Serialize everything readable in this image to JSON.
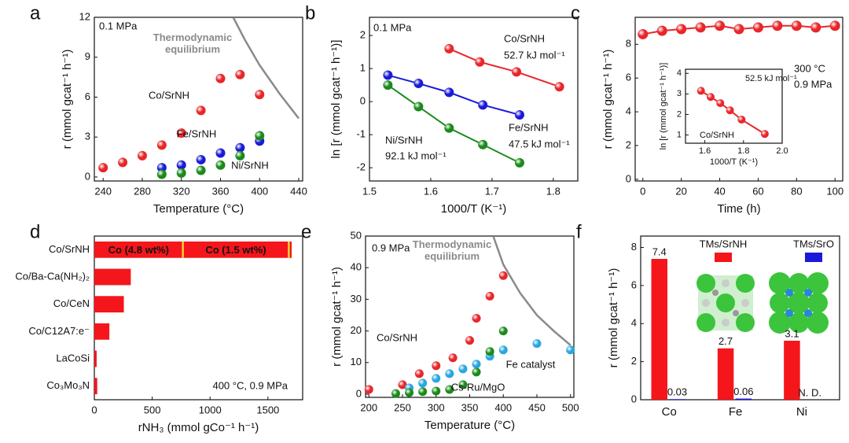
{
  "chart_data": [
    {
      "type": "scatter",
      "label": "a",
      "xlabel": "Temperature (°C)",
      "ylabel": "r (mmol gcat⁻¹ h⁻¹)",
      "xlim": [
        231,
        444
      ],
      "xticks": [
        240,
        280,
        320,
        360,
        400,
        440
      ],
      "ylim": [
        -0.3,
        12
      ],
      "yticks": [
        0,
        3,
        6,
        9,
        12
      ],
      "series": [
        {
          "name": "Co/SrNH",
          "color": "#e8262a",
          "mode": "markers",
          "x": [
            240,
            260,
            280,
            300,
            320,
            340,
            360,
            380,
            400
          ],
          "values": [
            0.7,
            1.1,
            1.6,
            2.4,
            3.3,
            5.0,
            7.4,
            7.7,
            6.2
          ]
        },
        {
          "name": "Fe/SrNH",
          "color": "#1a1ad8",
          "mode": "markers",
          "x": [
            300,
            320,
            340,
            360,
            380,
            400
          ],
          "values": [
            0.7,
            0.9,
            1.3,
            1.8,
            2.2,
            2.7
          ]
        },
        {
          "name": "Ni/SrNH",
          "color": "#1a8a1a",
          "mode": "markers",
          "x": [
            300,
            320,
            340,
            360,
            380,
            400
          ],
          "values": [
            0.2,
            0.3,
            0.5,
            0.9,
            1.6,
            3.1
          ]
        },
        {
          "name": "Thermodynamic equilibrium",
          "color": "#8a8a8a",
          "mode": "lines",
          "x": [
            373,
            385,
            400,
            420,
            440
          ],
          "values": [
            12,
            10.3,
            8.4,
            6.3,
            4.4
          ]
        }
      ],
      "annotations": [
        {
          "text": "0.1 MPa",
          "color": "#111111"
        }
      ]
    },
    {
      "type": "scatter",
      "label": "b",
      "xlabel": "1000/T (K⁻¹)",
      "ylabel": "ln [r (mmol gcat⁻¹ h⁻¹)]",
      "xlim": [
        1.5,
        1.84
      ],
      "xticks": [
        1.5,
        1.6,
        1.7,
        1.8
      ],
      "ylim": [
        -2.4,
        2.55
      ],
      "yticks": [
        -2,
        -1,
        0,
        1,
        2
      ],
      "series": [
        {
          "name": "Co/SrNH",
          "color": "#e8262a",
          "mode": "lines+markers",
          "x": [
            1.63,
            1.68,
            1.74,
            1.81
          ],
          "values": [
            1.6,
            1.2,
            0.9,
            0.45
          ]
        },
        {
          "name": "Fe/SrNH",
          "color": "#1a1ad8",
          "mode": "lines+markers",
          "x": [
            1.53,
            1.58,
            1.63,
            1.685,
            1.745
          ],
          "values": [
            0.8,
            0.55,
            0.28,
            -0.1,
            -0.4
          ]
        },
        {
          "name": "Ni/SrNH",
          "color": "#1a8a1a",
          "mode": "lines+markers",
          "x": [
            1.53,
            1.58,
            1.63,
            1.685,
            1.745
          ],
          "values": [
            0.5,
            -0.15,
            -0.8,
            -1.3,
            -1.85
          ]
        }
      ],
      "annotations": [
        {
          "text": "0.1 MPa",
          "color": "#111111"
        },
        {
          "text": "52.7 kJ mol⁻¹",
          "color": "#e8262a"
        },
        {
          "text": "47.5 kJ mol⁻¹",
          "color": "#1a1ad8"
        },
        {
          "text": "92.1 kJ mol⁻¹",
          "color": "#1a8a1a"
        }
      ]
    },
    {
      "type": "scatter",
      "label": "c",
      "xlabel": "Time (h)",
      "ylabel": "r (mmol gcat⁻¹ h⁻¹)",
      "xlim": [
        -4,
        104
      ],
      "xticks": [
        0,
        20,
        40,
        60,
        80,
        100
      ],
      "ylim": [
        -0.1,
        9.6
      ],
      "yticks": [
        0,
        2,
        4,
        6,
        8
      ],
      "series": [
        {
          "color": "#e8262a",
          "mode": "lines+markers",
          "x": [
            0,
            10,
            20,
            30,
            40,
            50,
            60,
            70,
            80,
            90,
            100
          ],
          "values": [
            8.6,
            8.8,
            8.9,
            9.0,
            9.1,
            8.9,
            9.0,
            9.1,
            9.1,
            9.0,
            9.1
          ]
        }
      ],
      "annotations": [
        {
          "text": "300 °C",
          "color": "#111111"
        },
        {
          "text": "0.9 MPa",
          "color": "#111111"
        }
      ],
      "inset": {
        "type": "scatter",
        "xlabel": "1000/T (K⁻¹)",
        "ylabel": "ln [r (mmol gcat⁻¹ h⁻¹)]",
        "xlim": [
          1.5,
          2.0
        ],
        "xticks": [
          1.6,
          1.8,
          {
            "value": 2,
            "label": "2.0"
          }
        ],
        "ylim": [
          0.6,
          4.2
        ],
        "yticks": [
          1,
          2,
          3,
          4
        ],
        "series": [
          {
            "name": "Co/SrNH",
            "color": "#e8262a",
            "mode": "lines+markers",
            "x": [
              1.58,
              1.63,
              1.68,
              1.73,
              1.79,
              1.91
            ],
            "values": [
              3.15,
              2.85,
              2.55,
              2.2,
              1.75,
              1.05
            ]
          }
        ],
        "annotations": [
          {
            "text": "52.5 kJ mol⁻¹",
            "color": "#e8262a"
          }
        ]
      }
    },
    {
      "type": "hbar",
      "label": "d",
      "xlabel": "rNH₃ (mmol gCo⁻¹ h⁻¹)",
      "categories": [
        "Co/SrNH",
        "Co/Ba-Ca(NH₂)₂",
        "Co/CeN",
        "Co/C12A7:e⁻",
        "LaCoSi",
        "Co₃Mo₃N"
      ],
      "values": [
        1705,
        315,
        255,
        130,
        20,
        25
      ],
      "color": "#f4161b",
      "xlim": [
        0,
        1800
      ],
      "xticks": [
        0,
        500,
        1000,
        1500
      ],
      "markers": [
        {
          "value": 765,
          "label": "Co (4.8 wt%)"
        },
        {
          "value": 1680,
          "label": "Co (1.5 wt%)"
        }
      ],
      "marker_color": "#f5d230",
      "annotations": [
        {
          "text": "400 °C, 0.9 MPa",
          "color": "#111111"
        }
      ]
    },
    {
      "type": "scatter",
      "label": "e",
      "xlabel": "Temperature (°C)",
      "ylabel": "r (mmol gcat⁻¹ h⁻¹)",
      "xlim": [
        195,
        505
      ],
      "xticks": [
        200,
        250,
        300,
        350,
        400,
        450,
        500
      ],
      "ylim": [
        -1,
        50
      ],
      "yticks": [
        0,
        10,
        20,
        30,
        40,
        50
      ],
      "series": [
        {
          "name": "Co/SrNH",
          "color": "#e8262a",
          "mode": "markers",
          "x": [
            200,
            250,
            275,
            300,
            325,
            350,
            360,
            380,
            400
          ],
          "values": [
            1.5,
            3,
            6.5,
            9,
            11.5,
            17,
            24,
            31,
            37.5
          ]
        },
        {
          "name": "Fe catalyst",
          "color": "#2aa6e0",
          "mode": "markers",
          "x": [
            260,
            280,
            300,
            320,
            340,
            360,
            380,
            400,
            450,
            500
          ],
          "values": [
            2,
            3.5,
            5,
            6.5,
            8,
            9.5,
            12,
            14,
            16,
            14
          ]
        },
        {
          "name": "Cs-Ru/MgO",
          "color": "#1a8a1a",
          "mode": "markers",
          "x": [
            240,
            260,
            280,
            300,
            320,
            340,
            360,
            380,
            400
          ],
          "values": [
            0.2,
            0.5,
            0.8,
            1,
            1.5,
            3,
            7,
            13.5,
            20
          ]
        },
        {
          "name": "Thermodynamic equilibrium",
          "color": "#8a8a8a",
          "mode": "lines",
          "x": [
            385,
            400,
            425,
            450,
            475,
            500
          ],
          "values": [
            50,
            41,
            32,
            25,
            20,
            15.5
          ]
        }
      ],
      "annotations": [
        {
          "text": "0.9 MPa",
          "color": "#111111"
        }
      ]
    },
    {
      "type": "bar",
      "label": "f",
      "ylabel": "r (mmol gcat⁻¹ h⁻¹)",
      "categories": [
        "Co",
        "Fe",
        "Ni"
      ],
      "ylim": [
        0,
        8.6
      ],
      "yticks": [
        0,
        2,
        4,
        6,
        8
      ],
      "series": [
        {
          "name": "TMs/SrNH",
          "color": "#f4161b",
          "values": [
            7.4,
            2.7,
            3.1
          ],
          "value_labels": [
            "7.4",
            "2.7",
            "3.1"
          ]
        },
        {
          "name": "TMs/SrO",
          "color": "#1a1ad8",
          "values": [
            0.03,
            0.06,
            null
          ],
          "value_labels": [
            "0.03",
            "0.06",
            "N. D."
          ]
        }
      ]
    }
  ]
}
